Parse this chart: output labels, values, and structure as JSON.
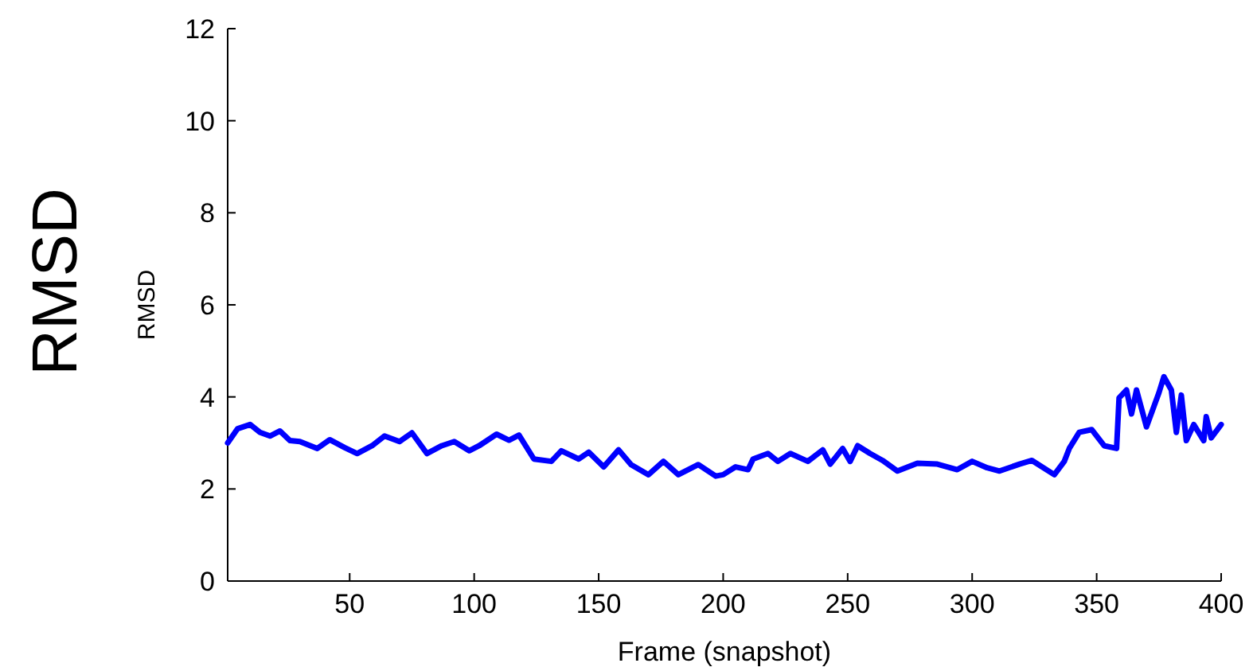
{
  "chart_data": {
    "type": "line",
    "title": "RMSD",
    "xlabel": "Frame (snapshot)",
    "ylabel": "RMSD",
    "xlim": [
      1,
      400
    ],
    "xticks": [
      50,
      100,
      150,
      200,
      250,
      300,
      350,
      400
    ],
    "ylim": [
      0,
      12
    ],
    "yticks": [
      0,
      2,
      4,
      6,
      8,
      10,
      12
    ],
    "grid": false,
    "marker": "none",
    "line_style": "solid",
    "series": [
      {
        "color": "#0000ff",
        "x": [
          1,
          5,
          10,
          14,
          18,
          22,
          26,
          30,
          37,
          42,
          48,
          53,
          59,
          64,
          70,
          75,
          81,
          87,
          92,
          98,
          102,
          109,
          114,
          118,
          124,
          131,
          135,
          142,
          146,
          152,
          158,
          163,
          170,
          176,
          182,
          190,
          197,
          200,
          205,
          210,
          212,
          218,
          222,
          227,
          234,
          240,
          243,
          248,
          251,
          254,
          259,
          264,
          270,
          278,
          286,
          294,
          300,
          306,
          311,
          319,
          324,
          333,
          337,
          339,
          343,
          348,
          353,
          358,
          359,
          362,
          364,
          366,
          370,
          375,
          377,
          380,
          382,
          384,
          386,
          389,
          393,
          394,
          396,
          400
        ],
        "values": [
          3.0,
          3.31,
          3.4,
          3.23,
          3.15,
          3.26,
          3.05,
          3.03,
          2.88,
          3.07,
          2.9,
          2.77,
          2.94,
          3.15,
          3.03,
          3.22,
          2.77,
          2.94,
          3.03,
          2.83,
          2.94,
          3.19,
          3.06,
          3.17,
          2.65,
          2.6,
          2.83,
          2.65,
          2.8,
          2.48,
          2.85,
          2.53,
          2.31,
          2.6,
          2.31,
          2.53,
          2.28,
          2.31,
          2.48,
          2.42,
          2.65,
          2.77,
          2.6,
          2.77,
          2.6,
          2.85,
          2.54,
          2.88,
          2.6,
          2.94,
          2.77,
          2.62,
          2.39,
          2.56,
          2.54,
          2.42,
          2.6,
          2.46,
          2.39,
          2.54,
          2.62,
          2.31,
          2.6,
          2.88,
          3.23,
          3.29,
          2.94,
          2.88,
          3.98,
          4.15,
          3.63,
          4.15,
          3.35,
          4.09,
          4.44,
          4.15,
          3.23,
          4.04,
          3.05,
          3.4,
          3.05,
          3.57,
          3.11,
          3.4
        ]
      }
    ]
  }
}
